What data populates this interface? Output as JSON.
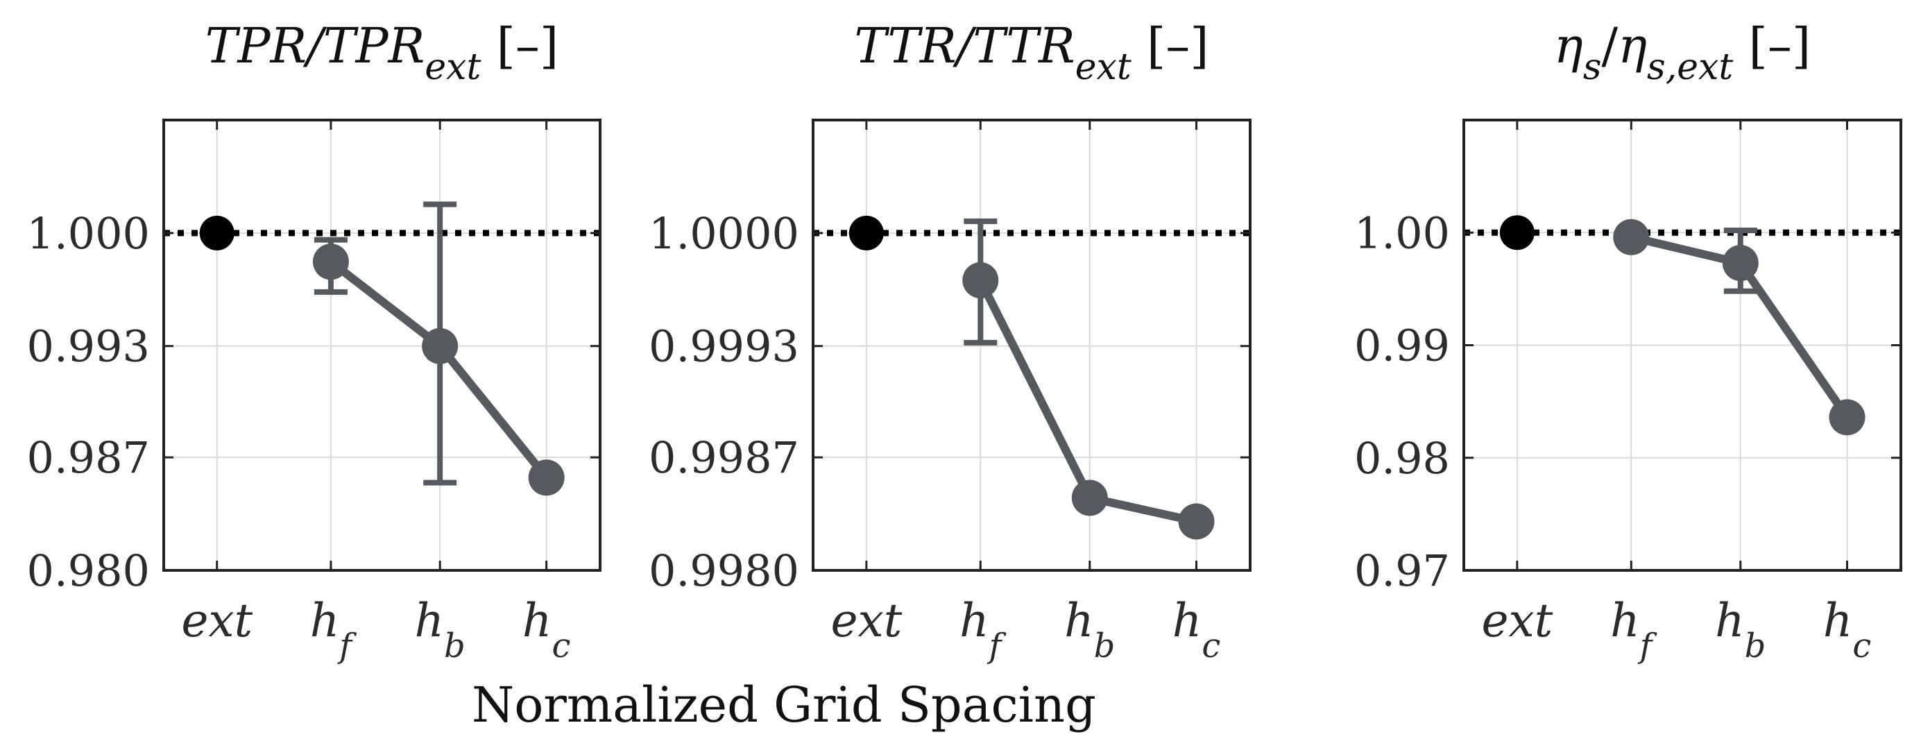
{
  "chart_data": {
    "xlabel": "Normalized Grid Spacing",
    "charts": [
      {
        "type": "line",
        "title": {
          "main": "TPR/TPR",
          "sub": "ext",
          "suffix": " [–]"
        },
        "categories": [
          {
            "main": "ext",
            "sub": ""
          },
          {
            "main": "h",
            "sub": "f"
          },
          {
            "main": "h",
            "sub": "b"
          },
          {
            "main": "h",
            "sub": "c"
          }
        ],
        "reference": {
          "x": "ext",
          "y": 1.0
        },
        "series": [
          {
            "x": [
              "h_f",
              "h_b",
              "h_c"
            ],
            "values": [
              0.9983,
              0.9933,
              0.9855
            ],
            "error_low": [
              0.9965,
              0.9852,
              null
            ],
            "error_high": [
              0.9996,
              1.0017,
              null
            ]
          }
        ],
        "ylim": [
          0.98,
          1.0067
        ],
        "yticks": [
          0.98,
          0.9867,
          0.9933,
          1.0
        ],
        "ytick_labels": [
          "0.980",
          "0.987",
          "0.993",
          "1.000"
        ]
      },
      {
        "type": "line",
        "title": {
          "main": "TTR/TTR",
          "sub": "ext",
          "suffix": " [–]"
        },
        "categories": [
          {
            "main": "ext",
            "sub": ""
          },
          {
            "main": "h",
            "sub": "f"
          },
          {
            "main": "h",
            "sub": "b"
          },
          {
            "main": "h",
            "sub": "c"
          }
        ],
        "reference": {
          "x": "ext",
          "y": 1.0
        },
        "series": [
          {
            "x": [
              "h_f",
              "h_b",
              "h_c"
            ],
            "values": [
              0.99972,
              0.99843,
              0.99829
            ],
            "error_low": [
              0.99935,
              null,
              null
            ],
            "error_high": [
              1.00007,
              null,
              null
            ]
          }
        ],
        "ylim": [
          0.998,
          1.00067
        ],
        "yticks": [
          0.998,
          0.99867,
          0.99933,
          1.0
        ],
        "ytick_labels": [
          "0.9980",
          "0.9987",
          "0.9993",
          "1.0000"
        ]
      },
      {
        "type": "line",
        "title": {
          "main": "η",
          "sub": "s",
          "slash": "/",
          "main2": "η",
          "sub2": "s,ext",
          "suffix": " [–]"
        },
        "categories": [
          {
            "main": "ext",
            "sub": ""
          },
          {
            "main": "h",
            "sub": "f"
          },
          {
            "main": "h",
            "sub": "b"
          },
          {
            "main": "h",
            "sub": "c"
          }
        ],
        "reference": {
          "x": "ext",
          "y": 1.0
        },
        "series": [
          {
            "x": [
              "h_f",
              "h_b",
              "h_c"
            ],
            "values": [
              0.9996,
              0.9973,
              0.9836
            ],
            "error_low": [
              null,
              0.9948,
              null
            ],
            "error_high": [
              null,
              1.0002,
              null
            ]
          }
        ],
        "ylim": [
          0.97,
          1.01
        ],
        "yticks": [
          0.97,
          0.98,
          0.99,
          1.0
        ],
        "ytick_labels": [
          "0.97",
          "0.98",
          "0.99",
          "1.00"
        ]
      }
    ]
  },
  "colors": {
    "series": "#555a61",
    "reference": "#000000",
    "grid": "#d9d9d9",
    "axis": "#222222"
  }
}
